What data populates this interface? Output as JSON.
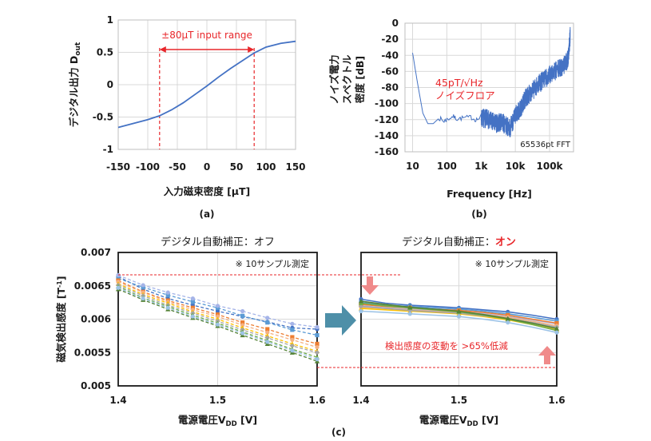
{
  "chart_data": [
    {
      "id": "a",
      "type": "line",
      "caption": "(a)",
      "xlabel": "入力磁束密度 [μT]",
      "ylabel": "デジタル出力 D",
      "ylabel_sub": "out",
      "xlim": [
        -150,
        150
      ],
      "ylim": [
        -1,
        1
      ],
      "xticks": [
        "-150",
        "-100",
        "-50",
        "0",
        "50",
        "100",
        "150"
      ],
      "yticks": [
        "-1",
        "-0.5",
        "0",
        "0.5",
        "1"
      ],
      "annotation": "±80μT input range",
      "range": [
        -80,
        80
      ],
      "series": [
        {
          "color": "#4472c4",
          "x": [
            -150,
            -125,
            -100,
            -80,
            -60,
            -40,
            -20,
            0,
            20,
            40,
            60,
            80,
            100,
            125,
            150
          ],
          "y": [
            -0.66,
            -0.6,
            -0.54,
            -0.48,
            -0.39,
            -0.28,
            -0.15,
            -0.02,
            0.12,
            0.25,
            0.37,
            0.49,
            0.58,
            0.64,
            0.67
          ]
        }
      ]
    },
    {
      "id": "b",
      "type": "line",
      "caption": "(b)",
      "xlabel": "Frequency [Hz]",
      "ylabel_lines": [
        "ノイズ電力",
        "スペクトル",
        "密度 [dB]"
      ],
      "xscale": "log",
      "xlim": [
        6,
        500000
      ],
      "ylim": [
        -160,
        0
      ],
      "xticks": [
        {
          "v": 10,
          "label": "10"
        },
        {
          "v": 100,
          "label": "100"
        },
        {
          "v": 1000,
          "label": "1k"
        },
        {
          "v": 10000,
          "label": "10k"
        },
        {
          "v": 100000,
          "label": "100k"
        }
      ],
      "yticks": [
        "0",
        "-20",
        "-40",
        "-60",
        "-80",
        "-100",
        "-120",
        "-140",
        "-160"
      ],
      "annotation_1": "45pT/√Hz",
      "annotation_2": "ノイズフロア",
      "note": "65536pt FFT",
      "series": [
        {
          "color": "#4472c4",
          "x": [
            10,
            14,
            20,
            28,
            40,
            60,
            80,
            100,
            150,
            200,
            300,
            500,
            700,
            1000,
            1500,
            2000,
            3000,
            4000,
            5000,
            7000,
            10000,
            15000,
            20000,
            30000,
            50000,
            80000,
            120000,
            200000,
            300000,
            350000,
            400000
          ],
          "y": [
            -37,
            -75,
            -112,
            -125,
            -125,
            -118,
            -122,
            -120,
            -116,
            -119,
            -118,
            -117,
            -120,
            -118,
            -119,
            -122,
            -125,
            -122,
            -127,
            -130,
            -115,
            -105,
            -93,
            -85,
            -75,
            -68,
            -62,
            -56,
            -50,
            -42,
            -15
          ]
        }
      ]
    },
    {
      "id": "c1",
      "type": "line",
      "title": "デジタル自動補正：オフ",
      "note": "※ 10サンプル測定",
      "xlabel": "電源電圧V",
      "xlabel_sub": "DD",
      "xlabel_unit": " [V]",
      "ylabel": "磁気検出感度 [T",
      "ylabel_sup": "-1",
      "ylabel_end": "]",
      "xlim": [
        1.4,
        1.6
      ],
      "ylim": [
        0.005,
        0.007
      ],
      "xticks": [
        "1.4",
        "1.5",
        "1.6"
      ],
      "yticks": [
        "0.007",
        "0.0065",
        "0.006",
        "0.0055",
        "0.005"
      ],
      "x": [
        1.4,
        1.425,
        1.45,
        1.475,
        1.5,
        1.525,
        1.55,
        1.575,
        1.6
      ],
      "series": [
        {
          "color": "#4472c4",
          "values": [
            0.00664,
            0.00645,
            0.00631,
            0.00621,
            0.00612,
            0.00604,
            0.00596,
            0.00587,
            0.00585
          ]
        },
        {
          "color": "#5b9bd5",
          "values": [
            0.00661,
            0.00648,
            0.00636,
            0.00626,
            0.00617,
            0.00605,
            0.00595,
            0.00584,
            0.00576
          ]
        },
        {
          "color": "#a5b4e8",
          "values": [
            0.00666,
            0.00651,
            0.0064,
            0.00631,
            0.0062,
            0.00612,
            0.00602,
            0.00593,
            0.00588
          ]
        },
        {
          "color": "#ed7d31",
          "values": [
            0.00658,
            0.00641,
            0.00628,
            0.00617,
            0.00607,
            0.00595,
            0.00585,
            0.00573,
            0.00563
          ]
        },
        {
          "color": "#f4b183",
          "values": [
            0.00656,
            0.0064,
            0.00626,
            0.00614,
            0.00604,
            0.00591,
            0.0058,
            0.00569,
            0.00558
          ]
        },
        {
          "color": "#ffc000",
          "values": [
            0.00653,
            0.00637,
            0.00624,
            0.00611,
            0.006,
            0.00587,
            0.00575,
            0.00563,
            0.00552
          ]
        },
        {
          "color": "#a5a5a5",
          "values": [
            0.00651,
            0.00635,
            0.00621,
            0.00609,
            0.00597,
            0.00584,
            0.00572,
            0.0056,
            0.0055
          ]
        },
        {
          "color": "#70ad47",
          "values": [
            0.00649,
            0.00632,
            0.00619,
            0.00606,
            0.00594,
            0.00581,
            0.00568,
            0.00555,
            0.00543
          ]
        },
        {
          "color": "#548235",
          "values": [
            0.00645,
            0.00629,
            0.00615,
            0.00602,
            0.0059,
            0.00576,
            0.00563,
            0.0055,
            0.00537
          ]
        },
        {
          "color": "#9dc3e6",
          "values": [
            0.00647,
            0.00631,
            0.00617,
            0.00604,
            0.00592,
            0.00579,
            0.00566,
            0.00553,
            0.0054
          ]
        }
      ]
    },
    {
      "id": "c2",
      "type": "line",
      "caption": "(c)",
      "title_prefix": "デジタル自動補正：",
      "title_emph": "オン",
      "note": "※ 10サンプル測定",
      "annotation": "検出感度の変動を >65%低減",
      "xlabel": "電源電圧V",
      "xlabel_sub": "DD",
      "xlabel_unit": " [V]",
      "xlim": [
        1.4,
        1.6
      ],
      "ylim": [
        0.005,
        0.007
      ],
      "xticks": [
        "1.4",
        "1.5",
        "1.6"
      ],
      "x": [
        1.4,
        1.425,
        1.45,
        1.475,
        1.5,
        1.525,
        1.55,
        1.575,
        1.6
      ],
      "series": [
        {
          "color": "#4472c4",
          "values": [
            0.0063,
            0.00624,
            0.00621,
            0.00619,
            0.00617,
            0.00614,
            0.00611,
            0.00606,
            0.006
          ]
        },
        {
          "color": "#5b9bd5",
          "values": [
            0.00625,
            0.00621,
            0.00619,
            0.00617,
            0.00615,
            0.00612,
            0.00608,
            0.00603,
            0.00597
          ]
        },
        {
          "color": "#a5b4e8",
          "values": [
            0.0062,
            0.00617,
            0.00615,
            0.00613,
            0.00611,
            0.00608,
            0.00604,
            0.00599,
            0.00593
          ]
        },
        {
          "color": "#ed7d31",
          "values": [
            0.00622,
            0.00619,
            0.00617,
            0.00615,
            0.00613,
            0.0061,
            0.00606,
            0.006,
            0.00594
          ]
        },
        {
          "color": "#f4b183",
          "values": [
            0.00618,
            0.00616,
            0.00614,
            0.00612,
            0.0061,
            0.00607,
            0.00603,
            0.00597,
            0.0059
          ]
        },
        {
          "color": "#ffc000",
          "values": [
            0.00616,
            0.00614,
            0.00612,
            0.0061,
            0.00608,
            0.00604,
            0.00599,
            0.00592,
            0.00584
          ]
        },
        {
          "color": "#a5a5a5",
          "values": [
            0.00619,
            0.00616,
            0.00613,
            0.00611,
            0.00609,
            0.00605,
            0.00601,
            0.00595,
            0.00588
          ]
        },
        {
          "color": "#70ad47",
          "values": [
            0.00624,
            0.0062,
            0.00617,
            0.00614,
            0.00611,
            0.00606,
            0.006,
            0.00592,
            0.00583
          ]
        },
        {
          "color": "#548235",
          "values": [
            0.00627,
            0.00622,
            0.00618,
            0.00615,
            0.00612,
            0.00607,
            0.00601,
            0.00594,
            0.00586
          ]
        },
        {
          "color": "#9dc3e6",
          "values": [
            0.00612,
            0.0061,
            0.00608,
            0.00606,
            0.00604,
            0.006,
            0.00595,
            0.00588,
            0.0058
          ]
        }
      ]
    }
  ]
}
